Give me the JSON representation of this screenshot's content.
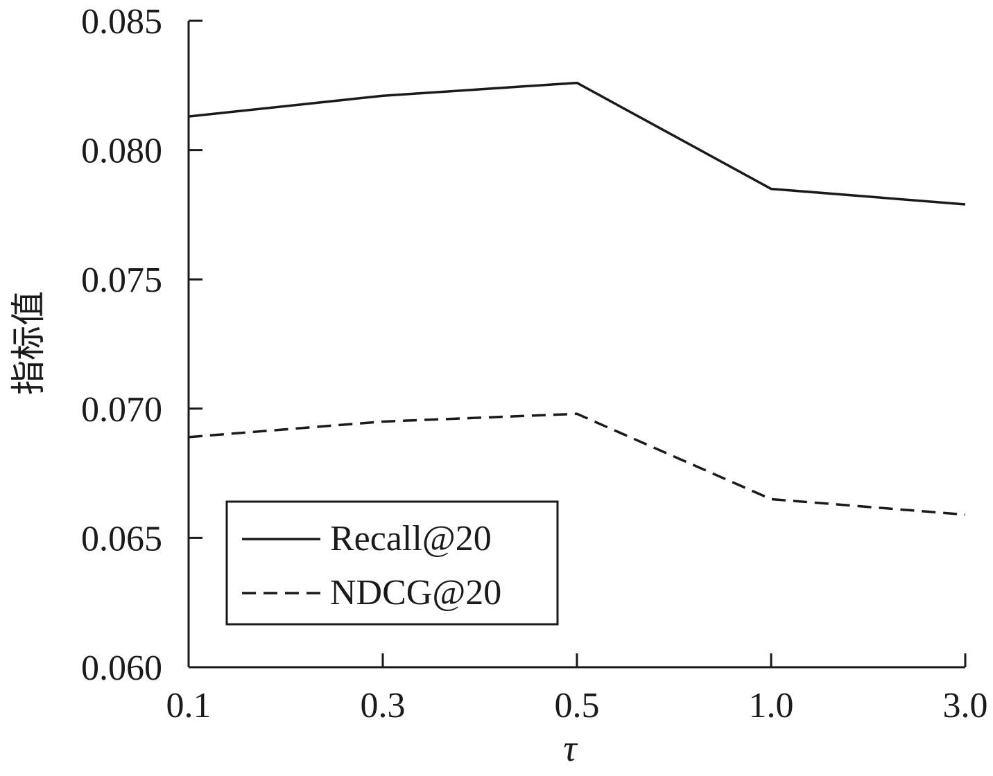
{
  "chart_data": {
    "type": "line",
    "title": "",
    "xlabel": "τ",
    "ylabel": "指标值",
    "categories": [
      "0.1",
      "0.3",
      "0.5",
      "1.0",
      "3.0"
    ],
    "ylim": [
      0.06,
      0.085
    ],
    "yticks": [
      "0.060",
      "0.065",
      "0.070",
      "0.075",
      "0.080",
      "0.085"
    ],
    "ytick_values": [
      0.06,
      0.065,
      0.07,
      0.075,
      0.08,
      0.085
    ],
    "grid": false,
    "legend_position": "bottom-left",
    "series": [
      {
        "name": "Recall@20",
        "style": "solid",
        "color": "#1a1a1a",
        "values": [
          0.0813,
          0.0821,
          0.0826,
          0.0785,
          0.0779
        ]
      },
      {
        "name": "NDCG@20",
        "style": "dashed",
        "color": "#1a1a1a",
        "values": [
          0.0689,
          0.0695,
          0.0698,
          0.0665,
          0.0659
        ]
      }
    ]
  }
}
